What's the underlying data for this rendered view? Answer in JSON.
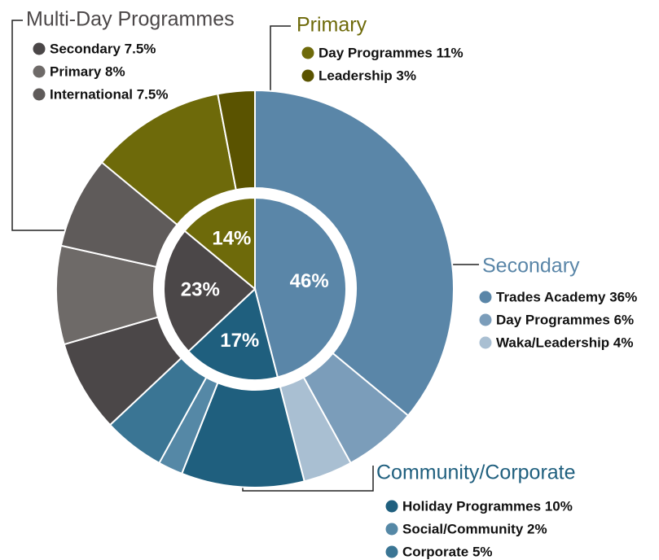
{
  "chart_data": {
    "type": "sunburst",
    "groups": [
      {
        "name": "Secondary",
        "value": 46,
        "value_label": "46%",
        "color": "#5a86a8",
        "children": [
          {
            "label": "Trades Academy 36%",
            "value": 36,
            "color": "#5a86a8"
          },
          {
            "label": "Day Programmes 6%",
            "value": 6,
            "color": "#7b9dba"
          },
          {
            "label": "Waka/Leadership 4%",
            "value": 4,
            "color": "#a9bfd2"
          }
        ]
      },
      {
        "name": "Community/Corporate",
        "value": 17,
        "value_label": "17%",
        "color": "#1f5f7e",
        "children": [
          {
            "label": "Holiday Programmes 10%",
            "value": 10,
            "color": "#1f5f7e"
          },
          {
            "label": "Social/Community 2%",
            "value": 2,
            "color": "#5588a6"
          },
          {
            "label": "Corporate 5%",
            "value": 5,
            "color": "#3a7594"
          }
        ]
      },
      {
        "name": "Multi-Day Programmes",
        "value": 23,
        "value_label": "23%",
        "color": "#4b4748",
        "children": [
          {
            "label": "Secondary 7.5%",
            "value": 7.5,
            "color": "#4b4748"
          },
          {
            "label": "Primary 8%",
            "value": 8,
            "color": "#6e6a68"
          },
          {
            "label": "International 7.5%",
            "value": 7.5,
            "color": "#5f5b5a"
          }
        ]
      },
      {
        "name": "Primary",
        "value": 14,
        "value_label": "14%",
        "color": "#6e6a0a",
        "children": [
          {
            "label": "Day Programmes 11%",
            "value": 11,
            "color": "#6e6a0a"
          },
          {
            "label": "Leadership 3%",
            "value": 3,
            "color": "#5a5300"
          }
        ]
      }
    ]
  }
}
